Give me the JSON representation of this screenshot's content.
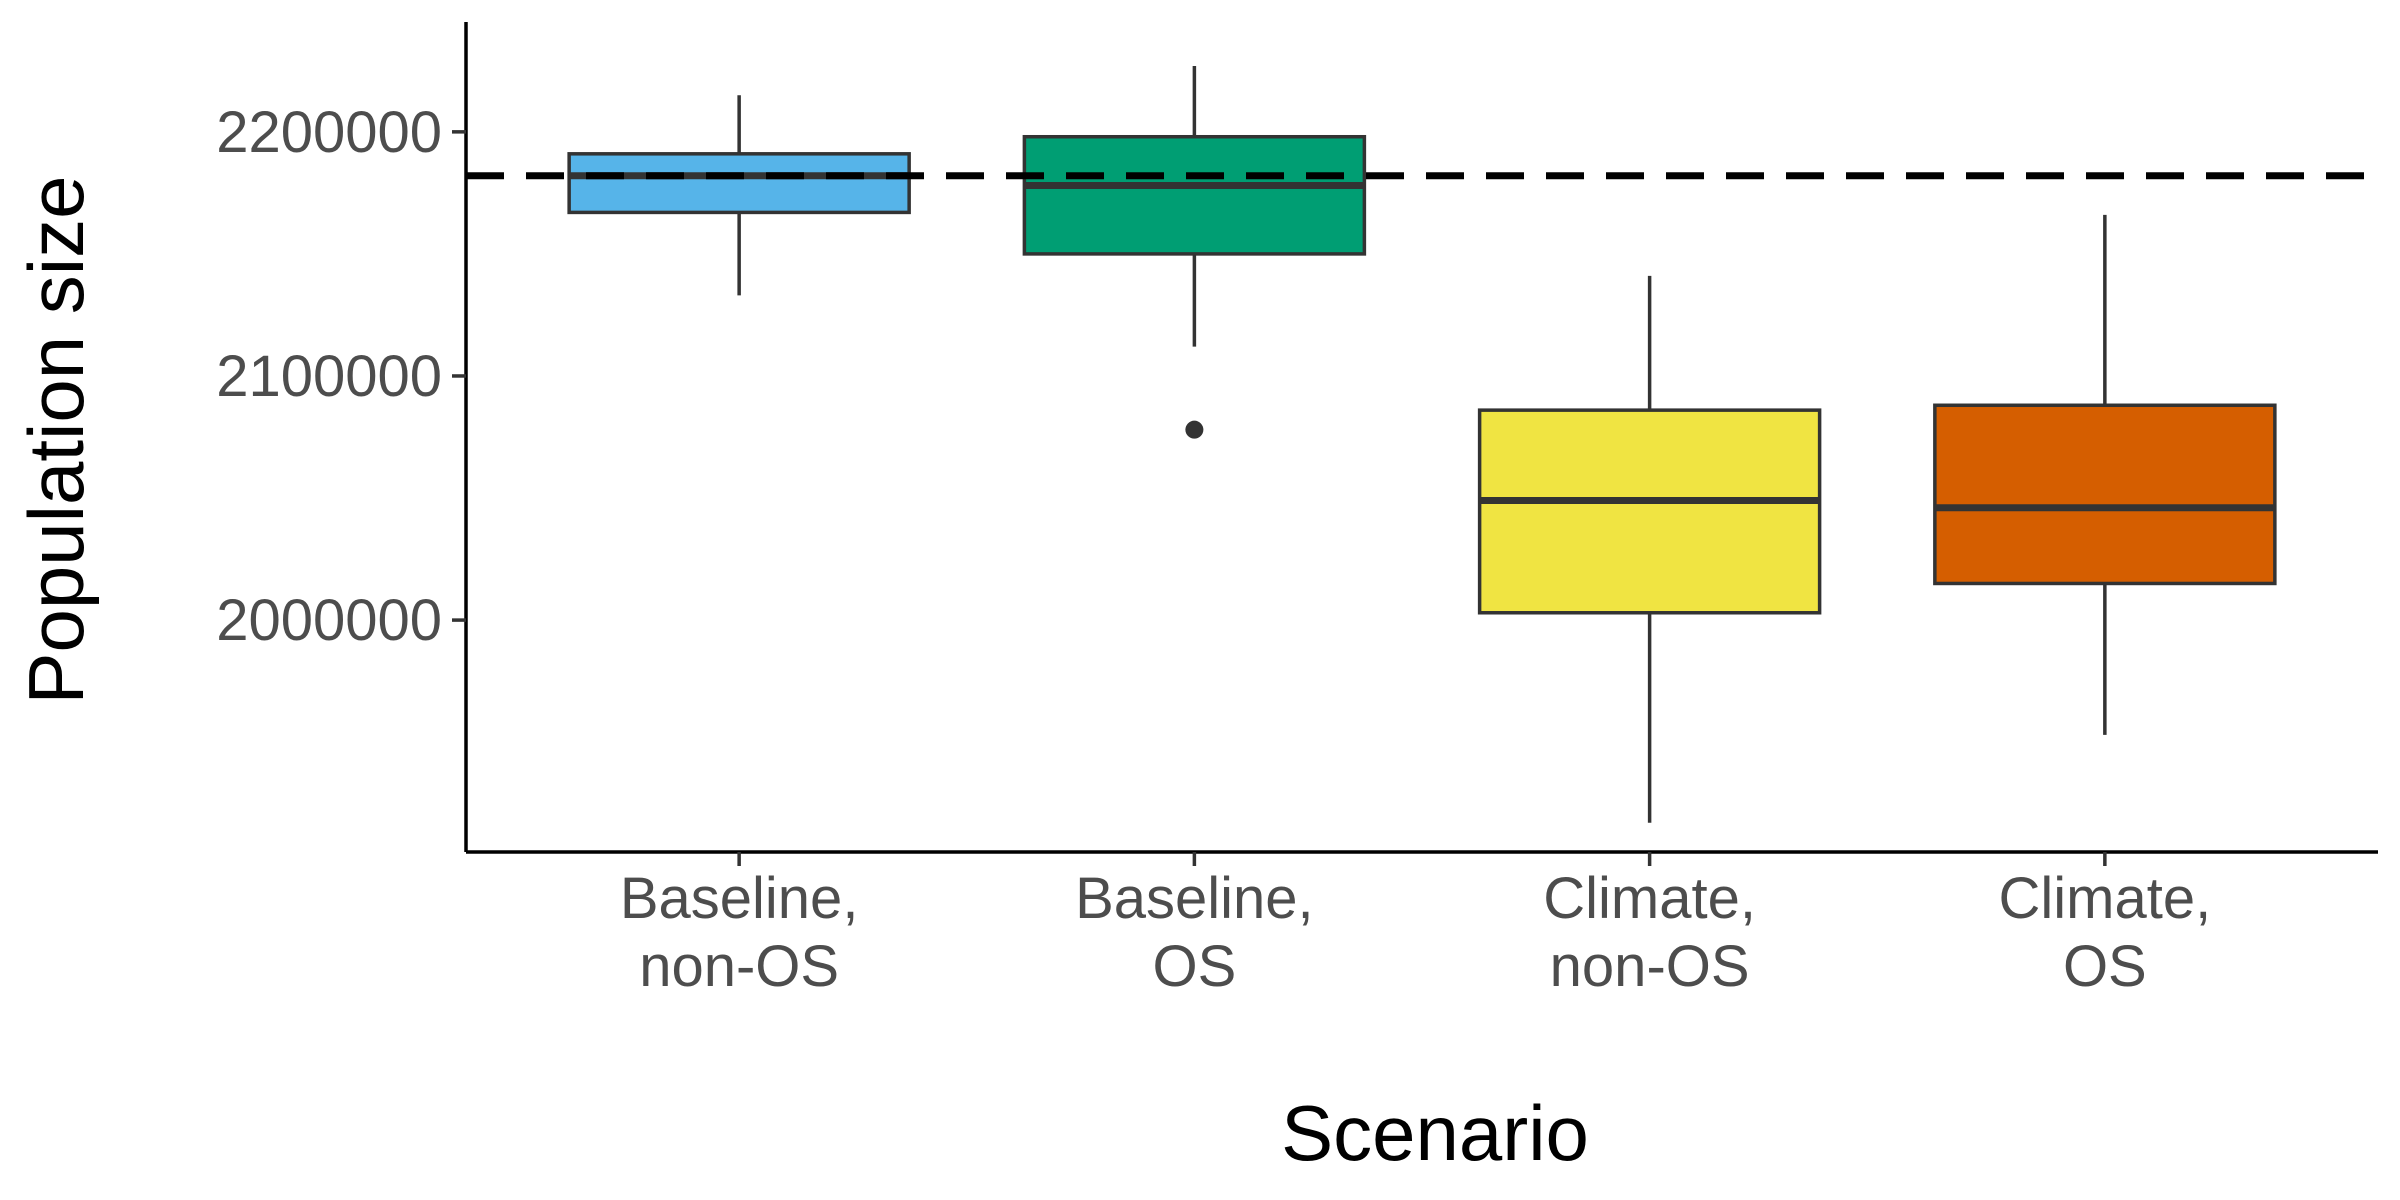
{
  "chart_data": {
    "type": "box",
    "title": "",
    "xlabel": "Scenario",
    "ylabel": "Population size",
    "ylim": [
      1905000,
      2245000
    ],
    "yticks": [
      {
        "value": 2000000,
        "label": "2000000"
      },
      {
        "value": 2100000,
        "label": "2100000"
      },
      {
        "value": 2200000,
        "label": "2200000"
      }
    ],
    "reference_line": {
      "value": 2182000,
      "style": "dashed",
      "color": "#000000"
    },
    "grid": false,
    "legend": "none",
    "categories": [
      {
        "lines": [
          "Baseline,",
          "non-OS"
        ],
        "color": "#56B4E9",
        "whisker_low": 2133000,
        "q1": 2167000,
        "median": 2182000,
        "q3": 2191000,
        "whisker_high": 2215000,
        "outliers": []
      },
      {
        "lines": [
          "Baseline,",
          "OS"
        ],
        "color": "#009E73",
        "whisker_low": 2112000,
        "q1": 2150000,
        "median": 2178000,
        "q3": 2198000,
        "whisker_high": 2227000,
        "outliers": [
          2078000
        ]
      },
      {
        "lines": [
          "Climate,",
          "non-OS"
        ],
        "color": "#F0E442",
        "whisker_low": 1917000,
        "q1": 2003000,
        "median": 2049000,
        "q3": 2086000,
        "whisker_high": 2141000,
        "outliers": []
      },
      {
        "lines": [
          "Climate,",
          "OS"
        ],
        "color": "#D55E00",
        "whisker_low": 1953000,
        "q1": 2015000,
        "median": 2046000,
        "q3": 2088000,
        "whisker_high": 2166000,
        "outliers": []
      }
    ]
  }
}
